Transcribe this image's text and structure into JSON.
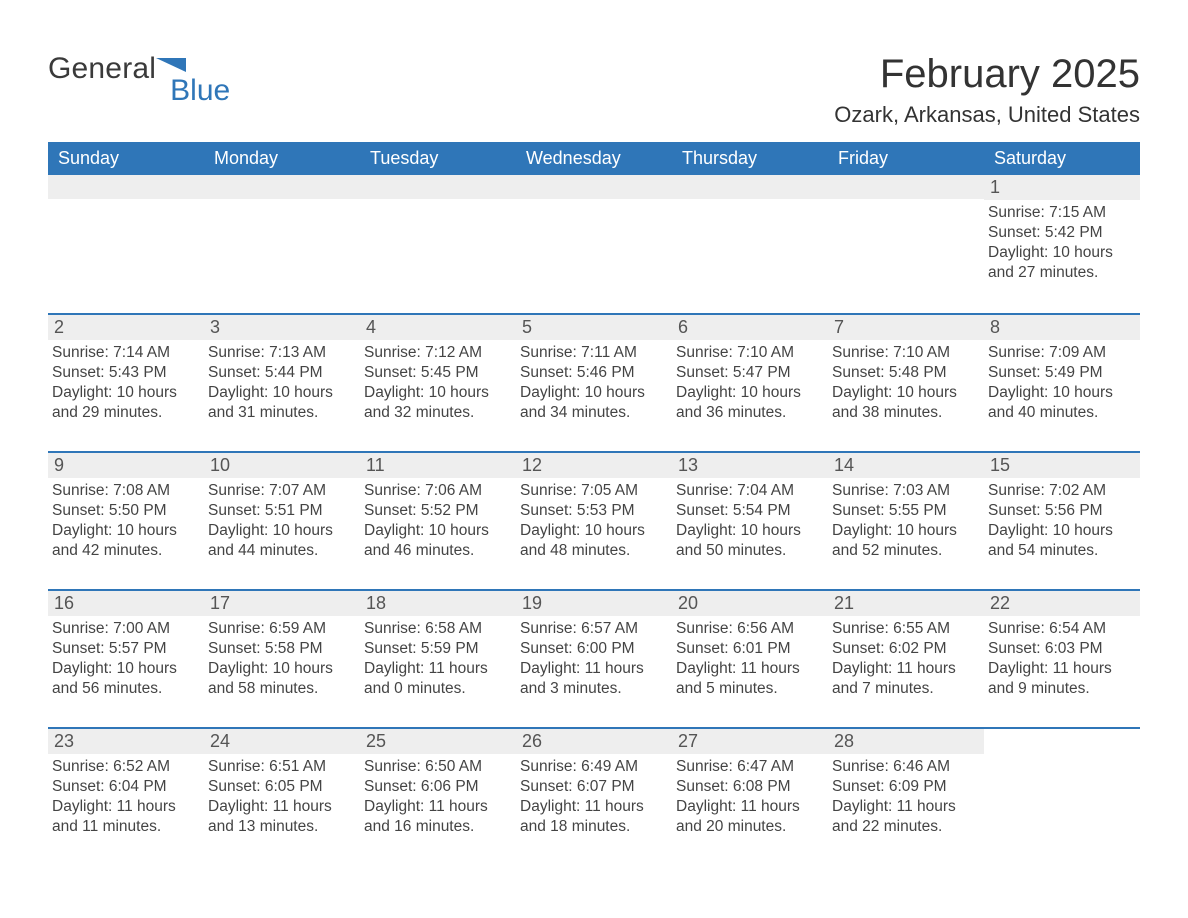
{
  "colors": {
    "accent": "#2f76b8",
    "header_bar": "#2f76b8",
    "row_stripe": "#eeeeee",
    "text": "#333333",
    "body_bg": "#ffffff",
    "week_divider": "#2f76b8"
  },
  "layout": {
    "columns": 7,
    "aspect_w": 1188,
    "aspect_h": 918,
    "dow_fontsize_pt": 14,
    "title_fontsize_pt": 30,
    "location_fontsize_pt": 16,
    "cell_fontsize_pt": 12
  },
  "logo": {
    "word1": "General",
    "word2": "Blue",
    "flag_color": "#2f76b8"
  },
  "title": "February 2025",
  "location": "Ozark, Arkansas, United States",
  "days_of_week": [
    "Sunday",
    "Monday",
    "Tuesday",
    "Wednesday",
    "Thursday",
    "Friday",
    "Saturday"
  ],
  "weeks": [
    [
      {
        "empty": true
      },
      {
        "empty": true
      },
      {
        "empty": true
      },
      {
        "empty": true
      },
      {
        "empty": true
      },
      {
        "empty": true
      },
      {
        "n": "1",
        "sunrise": "Sunrise: 7:15 AM",
        "sunset": "Sunset: 5:42 PM",
        "dl1": "Daylight: 10 hours",
        "dl2": "and 27 minutes."
      }
    ],
    [
      {
        "n": "2",
        "sunrise": "Sunrise: 7:14 AM",
        "sunset": "Sunset: 5:43 PM",
        "dl1": "Daylight: 10 hours",
        "dl2": "and 29 minutes."
      },
      {
        "n": "3",
        "sunrise": "Sunrise: 7:13 AM",
        "sunset": "Sunset: 5:44 PM",
        "dl1": "Daylight: 10 hours",
        "dl2": "and 31 minutes."
      },
      {
        "n": "4",
        "sunrise": "Sunrise: 7:12 AM",
        "sunset": "Sunset: 5:45 PM",
        "dl1": "Daylight: 10 hours",
        "dl2": "and 32 minutes."
      },
      {
        "n": "5",
        "sunrise": "Sunrise: 7:11 AM",
        "sunset": "Sunset: 5:46 PM",
        "dl1": "Daylight: 10 hours",
        "dl2": "and 34 minutes."
      },
      {
        "n": "6",
        "sunrise": "Sunrise: 7:10 AM",
        "sunset": "Sunset: 5:47 PM",
        "dl1": "Daylight: 10 hours",
        "dl2": "and 36 minutes."
      },
      {
        "n": "7",
        "sunrise": "Sunrise: 7:10 AM",
        "sunset": "Sunset: 5:48 PM",
        "dl1": "Daylight: 10 hours",
        "dl2": "and 38 minutes."
      },
      {
        "n": "8",
        "sunrise": "Sunrise: 7:09 AM",
        "sunset": "Sunset: 5:49 PM",
        "dl1": "Daylight: 10 hours",
        "dl2": "and 40 minutes."
      }
    ],
    [
      {
        "n": "9",
        "sunrise": "Sunrise: 7:08 AM",
        "sunset": "Sunset: 5:50 PM",
        "dl1": "Daylight: 10 hours",
        "dl2": "and 42 minutes."
      },
      {
        "n": "10",
        "sunrise": "Sunrise: 7:07 AM",
        "sunset": "Sunset: 5:51 PM",
        "dl1": "Daylight: 10 hours",
        "dl2": "and 44 minutes."
      },
      {
        "n": "11",
        "sunrise": "Sunrise: 7:06 AM",
        "sunset": "Sunset: 5:52 PM",
        "dl1": "Daylight: 10 hours",
        "dl2": "and 46 minutes."
      },
      {
        "n": "12",
        "sunrise": "Sunrise: 7:05 AM",
        "sunset": "Sunset: 5:53 PM",
        "dl1": "Daylight: 10 hours",
        "dl2": "and 48 minutes."
      },
      {
        "n": "13",
        "sunrise": "Sunrise: 7:04 AM",
        "sunset": "Sunset: 5:54 PM",
        "dl1": "Daylight: 10 hours",
        "dl2": "and 50 minutes."
      },
      {
        "n": "14",
        "sunrise": "Sunrise: 7:03 AM",
        "sunset": "Sunset: 5:55 PM",
        "dl1": "Daylight: 10 hours",
        "dl2": "and 52 minutes."
      },
      {
        "n": "15",
        "sunrise": "Sunrise: 7:02 AM",
        "sunset": "Sunset: 5:56 PM",
        "dl1": "Daylight: 10 hours",
        "dl2": "and 54 minutes."
      }
    ],
    [
      {
        "n": "16",
        "sunrise": "Sunrise: 7:00 AM",
        "sunset": "Sunset: 5:57 PM",
        "dl1": "Daylight: 10 hours",
        "dl2": "and 56 minutes."
      },
      {
        "n": "17",
        "sunrise": "Sunrise: 6:59 AM",
        "sunset": "Sunset: 5:58 PM",
        "dl1": "Daylight: 10 hours",
        "dl2": "and 58 minutes."
      },
      {
        "n": "18",
        "sunrise": "Sunrise: 6:58 AM",
        "sunset": "Sunset: 5:59 PM",
        "dl1": "Daylight: 11 hours",
        "dl2": "and 0 minutes."
      },
      {
        "n": "19",
        "sunrise": "Sunrise: 6:57 AM",
        "sunset": "Sunset: 6:00 PM",
        "dl1": "Daylight: 11 hours",
        "dl2": "and 3 minutes."
      },
      {
        "n": "20",
        "sunrise": "Sunrise: 6:56 AM",
        "sunset": "Sunset: 6:01 PM",
        "dl1": "Daylight: 11 hours",
        "dl2": "and 5 minutes."
      },
      {
        "n": "21",
        "sunrise": "Sunrise: 6:55 AM",
        "sunset": "Sunset: 6:02 PM",
        "dl1": "Daylight: 11 hours",
        "dl2": "and 7 minutes."
      },
      {
        "n": "22",
        "sunrise": "Sunrise: 6:54 AM",
        "sunset": "Sunset: 6:03 PM",
        "dl1": "Daylight: 11 hours",
        "dl2": "and 9 minutes."
      }
    ],
    [
      {
        "n": "23",
        "sunrise": "Sunrise: 6:52 AM",
        "sunset": "Sunset: 6:04 PM",
        "dl1": "Daylight: 11 hours",
        "dl2": "and 11 minutes."
      },
      {
        "n": "24",
        "sunrise": "Sunrise: 6:51 AM",
        "sunset": "Sunset: 6:05 PM",
        "dl1": "Daylight: 11 hours",
        "dl2": "and 13 minutes."
      },
      {
        "n": "25",
        "sunrise": "Sunrise: 6:50 AM",
        "sunset": "Sunset: 6:06 PM",
        "dl1": "Daylight: 11 hours",
        "dl2": "and 16 minutes."
      },
      {
        "n": "26",
        "sunrise": "Sunrise: 6:49 AM",
        "sunset": "Sunset: 6:07 PM",
        "dl1": "Daylight: 11 hours",
        "dl2": "and 18 minutes."
      },
      {
        "n": "27",
        "sunrise": "Sunrise: 6:47 AM",
        "sunset": "Sunset: 6:08 PM",
        "dl1": "Daylight: 11 hours",
        "dl2": "and 20 minutes."
      },
      {
        "n": "28",
        "sunrise": "Sunrise: 6:46 AM",
        "sunset": "Sunset: 6:09 PM",
        "dl1": "Daylight: 11 hours",
        "dl2": "and 22 minutes."
      },
      {
        "empty": true,
        "trailing": true
      }
    ]
  ]
}
